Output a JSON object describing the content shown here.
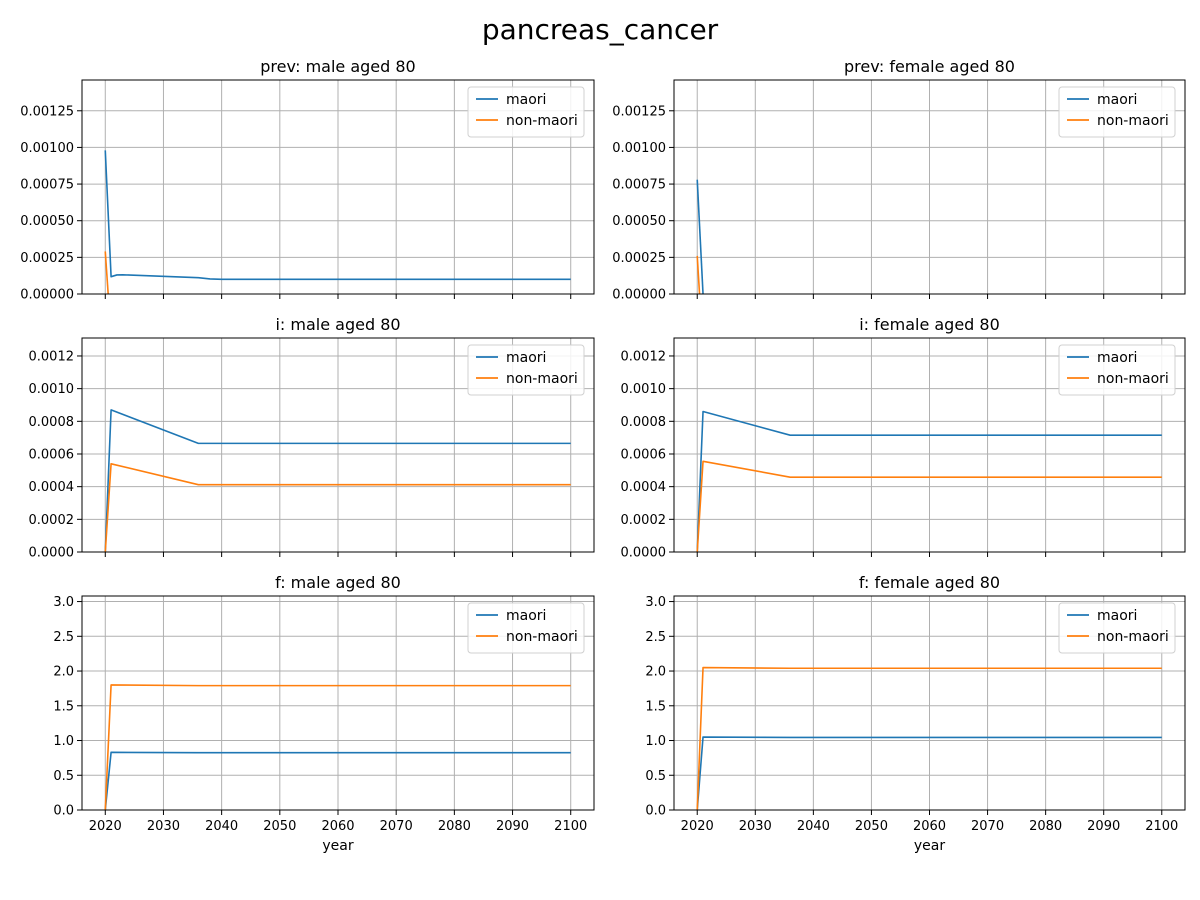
{
  "figure": {
    "suptitle": "pancreas_cancer",
    "xlabel": "year"
  },
  "chart_data": [
    {
      "type": "line",
      "title": "prev: male aged 80",
      "xlabel": "",
      "ylabel": "",
      "xlim": [
        2016,
        2104
      ],
      "ylim": [
        0,
        0.00146
      ],
      "xticks": [
        2020,
        2030,
        2040,
        2050,
        2060,
        2070,
        2080,
        2090,
        2100
      ],
      "show_xtick_labels": false,
      "yticks": [
        0,
        0.00025,
        0.0005,
        0.00075,
        0.001,
        0.00125
      ],
      "ytick_labels": [
        "0.00000",
        "0.00025",
        "0.00050",
        "0.00075",
        "0.00100",
        "0.00125"
      ],
      "grid": true,
      "legend": "upper right",
      "series": [
        {
          "name": "maori",
          "color": "#1f77b4",
          "x": [
            2020,
            2021,
            2022,
            2023,
            2036,
            2038,
            2040,
            2100
          ],
          "y": [
            0.00098,
            0.000118,
            0.00013,
            0.000131,
            0.000111,
            0.000103,
            0.0001,
            0.0001
          ]
        },
        {
          "name": "non-maori",
          "color": "#ff7f0e",
          "x": [
            2020,
            2020.5
          ],
          "y": [
            0.00029,
            0
          ]
        }
      ]
    },
    {
      "type": "line",
      "title": "prev: female aged 80",
      "xlabel": "",
      "ylabel": "",
      "xlim": [
        2016,
        2104
      ],
      "ylim": [
        0,
        0.00146
      ],
      "xticks": [
        2020,
        2030,
        2040,
        2050,
        2060,
        2070,
        2080,
        2090,
        2100
      ],
      "show_xtick_labels": false,
      "yticks": [
        0,
        0.00025,
        0.0005,
        0.00075,
        0.001,
        0.00125
      ],
      "ytick_labels": [
        "0.00000",
        "0.00025",
        "0.00050",
        "0.00075",
        "0.00100",
        "0.00125"
      ],
      "grid": true,
      "legend": "upper right",
      "series": [
        {
          "name": "maori",
          "color": "#1f77b4",
          "x": [
            2020,
            2021
          ],
          "y": [
            0.00078,
            0
          ]
        },
        {
          "name": "non-maori",
          "color": "#ff7f0e",
          "x": [
            2020,
            2020.4
          ],
          "y": [
            0.00026,
            0
          ]
        }
      ]
    },
    {
      "type": "line",
      "title": "i: male aged 80",
      "xlabel": "",
      "ylabel": "",
      "xlim": [
        2016,
        2104
      ],
      "ylim": [
        0,
        0.00131
      ],
      "xticks": [
        2020,
        2030,
        2040,
        2050,
        2060,
        2070,
        2080,
        2090,
        2100
      ],
      "show_xtick_labels": false,
      "yticks": [
        0,
        0.0002,
        0.0004,
        0.0006,
        0.0008,
        0.001,
        0.0012
      ],
      "ytick_labels": [
        "0.0000",
        "0.0002",
        "0.0004",
        "0.0006",
        "0.0008",
        "0.0010",
        "0.0012"
      ],
      "grid": true,
      "legend": "upper right",
      "series": [
        {
          "name": "maori",
          "color": "#1f77b4",
          "x": [
            2020,
            2021,
            2036,
            2100
          ],
          "y": [
            0,
            0.00087,
            0.000665,
            0.000665
          ]
        },
        {
          "name": "non-maori",
          "color": "#ff7f0e",
          "x": [
            2020,
            2021,
            2036,
            2100
          ],
          "y": [
            0,
            0.00054,
            0.000412,
            0.000412
          ]
        }
      ]
    },
    {
      "type": "line",
      "title": "i: female aged 80",
      "xlabel": "",
      "ylabel": "",
      "xlim": [
        2016,
        2104
      ],
      "ylim": [
        0,
        0.00131
      ],
      "xticks": [
        2020,
        2030,
        2040,
        2050,
        2060,
        2070,
        2080,
        2090,
        2100
      ],
      "show_xtick_labels": false,
      "yticks": [
        0,
        0.0002,
        0.0004,
        0.0006,
        0.0008,
        0.001,
        0.0012
      ],
      "ytick_labels": [
        "0.0000",
        "0.0002",
        "0.0004",
        "0.0006",
        "0.0008",
        "0.0010",
        "0.0012"
      ],
      "grid": true,
      "legend": "upper right",
      "series": [
        {
          "name": "maori",
          "color": "#1f77b4",
          "x": [
            2020,
            2021,
            2036,
            2100
          ],
          "y": [
            0,
            0.00086,
            0.000715,
            0.000715
          ]
        },
        {
          "name": "non-maori",
          "color": "#ff7f0e",
          "x": [
            2020,
            2021,
            2036,
            2100
          ],
          "y": [
            0,
            0.000555,
            0.000458,
            0.000458
          ]
        }
      ]
    },
    {
      "type": "line",
      "title": "f: male aged 80",
      "xlabel": "year",
      "ylabel": "",
      "xlim": [
        2016,
        2104
      ],
      "ylim": [
        0,
        3.08
      ],
      "xticks": [
        2020,
        2030,
        2040,
        2050,
        2060,
        2070,
        2080,
        2090,
        2100
      ],
      "show_xtick_labels": true,
      "yticks": [
        0,
        0.5,
        1,
        1.5,
        2,
        2.5,
        3
      ],
      "ytick_labels": [
        "0.0",
        "0.5",
        "1.0",
        "1.5",
        "2.0",
        "2.5",
        "3.0"
      ],
      "grid": true,
      "legend": "upper right",
      "series": [
        {
          "name": "maori",
          "color": "#1f77b4",
          "x": [
            2020,
            2021,
            2036,
            2100
          ],
          "y": [
            0,
            0.83,
            0.825,
            0.825
          ]
        },
        {
          "name": "non-maori",
          "color": "#ff7f0e",
          "x": [
            2020,
            2021,
            2036,
            2100
          ],
          "y": [
            0,
            1.8,
            1.79,
            1.79
          ]
        }
      ]
    },
    {
      "type": "line",
      "title": "f: female aged 80",
      "xlabel": "year",
      "ylabel": "",
      "xlim": [
        2016,
        2104
      ],
      "ylim": [
        0,
        3.08
      ],
      "xticks": [
        2020,
        2030,
        2040,
        2050,
        2060,
        2070,
        2080,
        2090,
        2100
      ],
      "show_xtick_labels": true,
      "yticks": [
        0,
        0.5,
        1,
        1.5,
        2,
        2.5,
        3
      ],
      "ytick_labels": [
        "0.0",
        "0.5",
        "1.0",
        "1.5",
        "2.0",
        "2.5",
        "3.0"
      ],
      "grid": true,
      "legend": "upper right",
      "series": [
        {
          "name": "maori",
          "color": "#1f77b4",
          "x": [
            2020,
            2021,
            2036,
            2100
          ],
          "y": [
            0,
            1.05,
            1.045,
            1.045
          ]
        },
        {
          "name": "non-maori",
          "color": "#ff7f0e",
          "x": [
            2020,
            2021,
            2036,
            2100
          ],
          "y": [
            0,
            2.05,
            2.04,
            2.04
          ]
        }
      ]
    }
  ]
}
